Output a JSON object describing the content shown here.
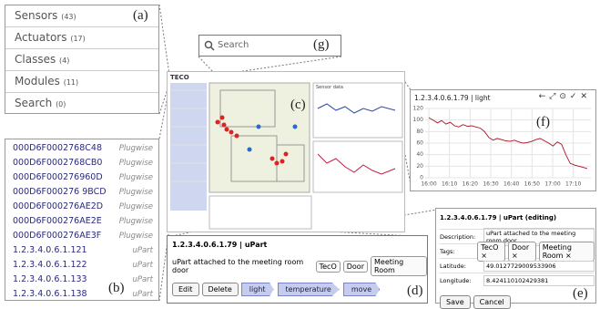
{
  "panel_a": {
    "label": "(a)",
    "items": [
      {
        "name": "Sensors",
        "count": "(43)"
      },
      {
        "name": "Actuators",
        "count": "(17)"
      },
      {
        "name": "Classes",
        "count": "(4)"
      },
      {
        "name": "Modules",
        "count": "(11)"
      },
      {
        "name": "Search",
        "count": "(0)"
      }
    ]
  },
  "panel_b": {
    "label": "(b)",
    "rows": [
      [
        "000D6F0002768C48",
        "Plugwise"
      ],
      [
        "000D6F0002768CB0",
        "Plugwise"
      ],
      [
        "000D6F000276960D",
        "Plugwise"
      ],
      [
        "000D6F000276 9BCD",
        "Plugwise"
      ],
      [
        "000D6F000276AE2D",
        "Plugwise"
      ],
      [
        "000D6F000276AE2E",
        "Plugwise"
      ],
      [
        "000D6F000276AE3F",
        "Plugwise"
      ],
      [
        "1.2.3.4.0.6.1.121",
        "uPart"
      ],
      [
        "1.2.3.4.0.6.1.122",
        "uPart"
      ],
      [
        "1.2.3.4.0.6.1.133",
        "uPart"
      ],
      [
        "1.2.3.4.0.6.1.138",
        "uPart"
      ]
    ]
  },
  "panel_g": {
    "label": "(g)",
    "placeholder": "Search"
  },
  "panel_c": {
    "label": "(c)",
    "logo": "TECO",
    "chart_title": "Sensor data"
  },
  "panel_f": {
    "label": "(f)",
    "title": "1.2.3.4.0.6.1.79 | light",
    "ylim": [
      0,
      120
    ],
    "yticks": [
      0,
      20,
      40,
      60,
      80,
      100,
      120
    ],
    "xticks": [
      "16:00",
      "16:10",
      "16:20",
      "16:30",
      "16:40",
      "16:50",
      "17:00",
      "17:10"
    ],
    "values": [
      104,
      100,
      95,
      99,
      93,
      96,
      90,
      88,
      92,
      89,
      90,
      88,
      86,
      80,
      70,
      65,
      68,
      66,
      64,
      63,
      65,
      62,
      60,
      61,
      63,
      66,
      68,
      64,
      60,
      55,
      62,
      58,
      40,
      25,
      22,
      20,
      18,
      16
    ]
  },
  "panel_d": {
    "label": "(d)",
    "title": "1.2.3.4.0.6.1.79 | uPart",
    "description": "uPart attached to the meeting room door",
    "tags": [
      "TecO",
      "Door",
      "Meeting Room"
    ],
    "buttons": [
      "Edit",
      "Delete"
    ],
    "actions": [
      "light",
      "temperature",
      "move"
    ]
  },
  "panel_e": {
    "label": "(e)",
    "title": "1.2.3.4.0.6.1.79 | uPart (editing)",
    "description_label": "Description:",
    "description": "uPart attached to the meeting room door",
    "tags_label": "Tags:",
    "tags": [
      "TecO ×",
      "Door ×",
      "Meeting Room ×"
    ],
    "latitude_label": "Latitude:",
    "latitude": "49.0127729009533906",
    "longitude_label": "Longitude:",
    "longitude": "8.424110102429381",
    "buttons": [
      "Save",
      "Cancel"
    ]
  }
}
